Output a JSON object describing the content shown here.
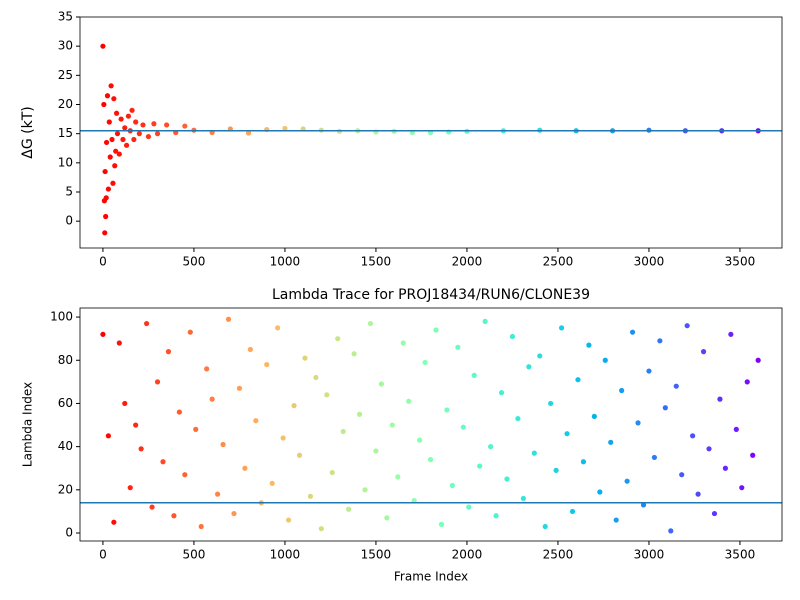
{
  "chart_data": [
    {
      "type": "scatter",
      "y_label": "ΔG (kT)",
      "colormap": "rainbow_r",
      "hline": 15.5,
      "hline_color": "#1f77b4",
      "x": [
        0,
        5,
        8,
        10,
        12,
        15,
        18,
        20,
        25,
        30,
        35,
        40,
        45,
        50,
        55,
        60,
        65,
        70,
        75,
        80,
        90,
        100,
        110,
        120,
        130,
        140,
        150,
        160,
        170,
        180,
        200,
        220,
        250,
        280,
        300,
        350,
        400,
        450,
        500,
        600,
        700,
        800,
        900,
        1000,
        1100,
        1200,
        1300,
        1400,
        1500,
        1600,
        1700,
        1800,
        1900,
        2000,
        2200,
        2400,
        2600,
        2800,
        3000,
        3200,
        3400,
        3600
      ],
      "values": [
        30,
        20,
        3.5,
        -2,
        8.5,
        0.8,
        4,
        13.5,
        21.5,
        5.5,
        17,
        11,
        23.2,
        14,
        6.5,
        21,
        9.5,
        12,
        18.5,
        15,
        11.5,
        17.5,
        14,
        16,
        13,
        18,
        15.5,
        19,
        14,
        17,
        15,
        16.5,
        14.5,
        16.7,
        15,
        16.5,
        15.2,
        16.3,
        15.6,
        15.2,
        15.8,
        15.1,
        15.7,
        15.9,
        15.8,
        15.6,
        15.4,
        15.5,
        15.3,
        15.4,
        15.2,
        15.2,
        15.3,
        15.4,
        15.5,
        15.6,
        15.5,
        15.5,
        15.6,
        15.5,
        15.5,
        15.5
      ],
      "xlim": [
        -126,
        3731
      ],
      "ylim": [
        -4.6,
        35
      ],
      "xticks": [
        0,
        500,
        1000,
        1500,
        2000,
        2500,
        3000,
        3500
      ],
      "yticks": [
        0,
        5,
        10,
        15,
        20,
        25,
        30,
        35
      ]
    },
    {
      "type": "scatter",
      "title": "Lambda Trace for PROJ18434/RUN6/CLONE39",
      "x_label": "Frame Index",
      "y_label": "Lambda Index",
      "colormap": "rainbow_r",
      "hline": 14,
      "hline_color": "#1f77b4",
      "x": [
        0,
        30,
        60,
        90,
        120,
        150,
        180,
        210,
        240,
        270,
        300,
        330,
        360,
        390,
        420,
        450,
        480,
        510,
        540,
        570,
        600,
        630,
        660,
        690,
        720,
        750,
        780,
        810,
        840,
        870,
        900,
        930,
        960,
        990,
        1020,
        1050,
        1080,
        1110,
        1140,
        1170,
        1200,
        1230,
        1260,
        1290,
        1320,
        1350,
        1380,
        1410,
        1440,
        1470,
        1500,
        1530,
        1560,
        1590,
        1620,
        1650,
        1680,
        1710,
        1740,
        1770,
        1800,
        1830,
        1860,
        1890,
        1920,
        1950,
        1980,
        2010,
        2040,
        2070,
        2100,
        2130,
        2160,
        2190,
        2220,
        2250,
        2280,
        2310,
        2340,
        2370,
        2400,
        2430,
        2460,
        2490,
        2520,
        2550,
        2580,
        2610,
        2640,
        2670,
        2700,
        2730,
        2760,
        2790,
        2820,
        2850,
        2880,
        2910,
        2940,
        2970,
        3000,
        3030,
        3060,
        3090,
        3120,
        3150,
        3180,
        3210,
        3240,
        3270,
        3300,
        3330,
        3360,
        3390,
        3420,
        3450,
        3480,
        3510,
        3540,
        3570,
        3600
      ],
      "values": [
        92,
        45,
        5,
        88,
        60,
        21,
        50,
        39,
        97,
        12,
        70,
        33,
        84,
        8,
        56,
        27,
        93,
        48,
        3,
        76,
        62,
        18,
        41,
        99,
        9,
        67,
        30,
        85,
        52,
        14,
        78,
        23,
        95,
        44,
        6,
        59,
        36,
        81,
        17,
        72,
        2,
        64,
        28,
        90,
        47,
        11,
        83,
        55,
        20,
        97,
        38,
        69,
        7,
        50,
        26,
        88,
        61,
        15,
        43,
        79,
        34,
        94,
        4,
        57,
        22,
        86,
        49,
        12,
        73,
        31,
        98,
        40,
        8,
        65,
        25,
        91,
        53,
        16,
        77,
        37,
        82,
        3,
        60,
        29,
        95,
        46,
        10,
        71,
        33,
        87,
        54,
        19,
        80,
        42,
        6,
        66,
        24,
        93,
        51,
        13,
        75,
        35,
        89,
        58,
        1,
        68,
        27,
        96,
        45,
        18,
        84,
        39,
        9,
        62,
        30,
        92,
        48,
        21,
        70,
        36,
        80
      ],
      "xlim": [
        -126,
        3731
      ],
      "ylim": [
        -3.7,
        104.2
      ],
      "xticks": [
        0,
        500,
        1000,
        1500,
        2000,
        2500,
        3000,
        3500
      ],
      "yticks": [
        0,
        20,
        40,
        60,
        80,
        100
      ]
    }
  ]
}
